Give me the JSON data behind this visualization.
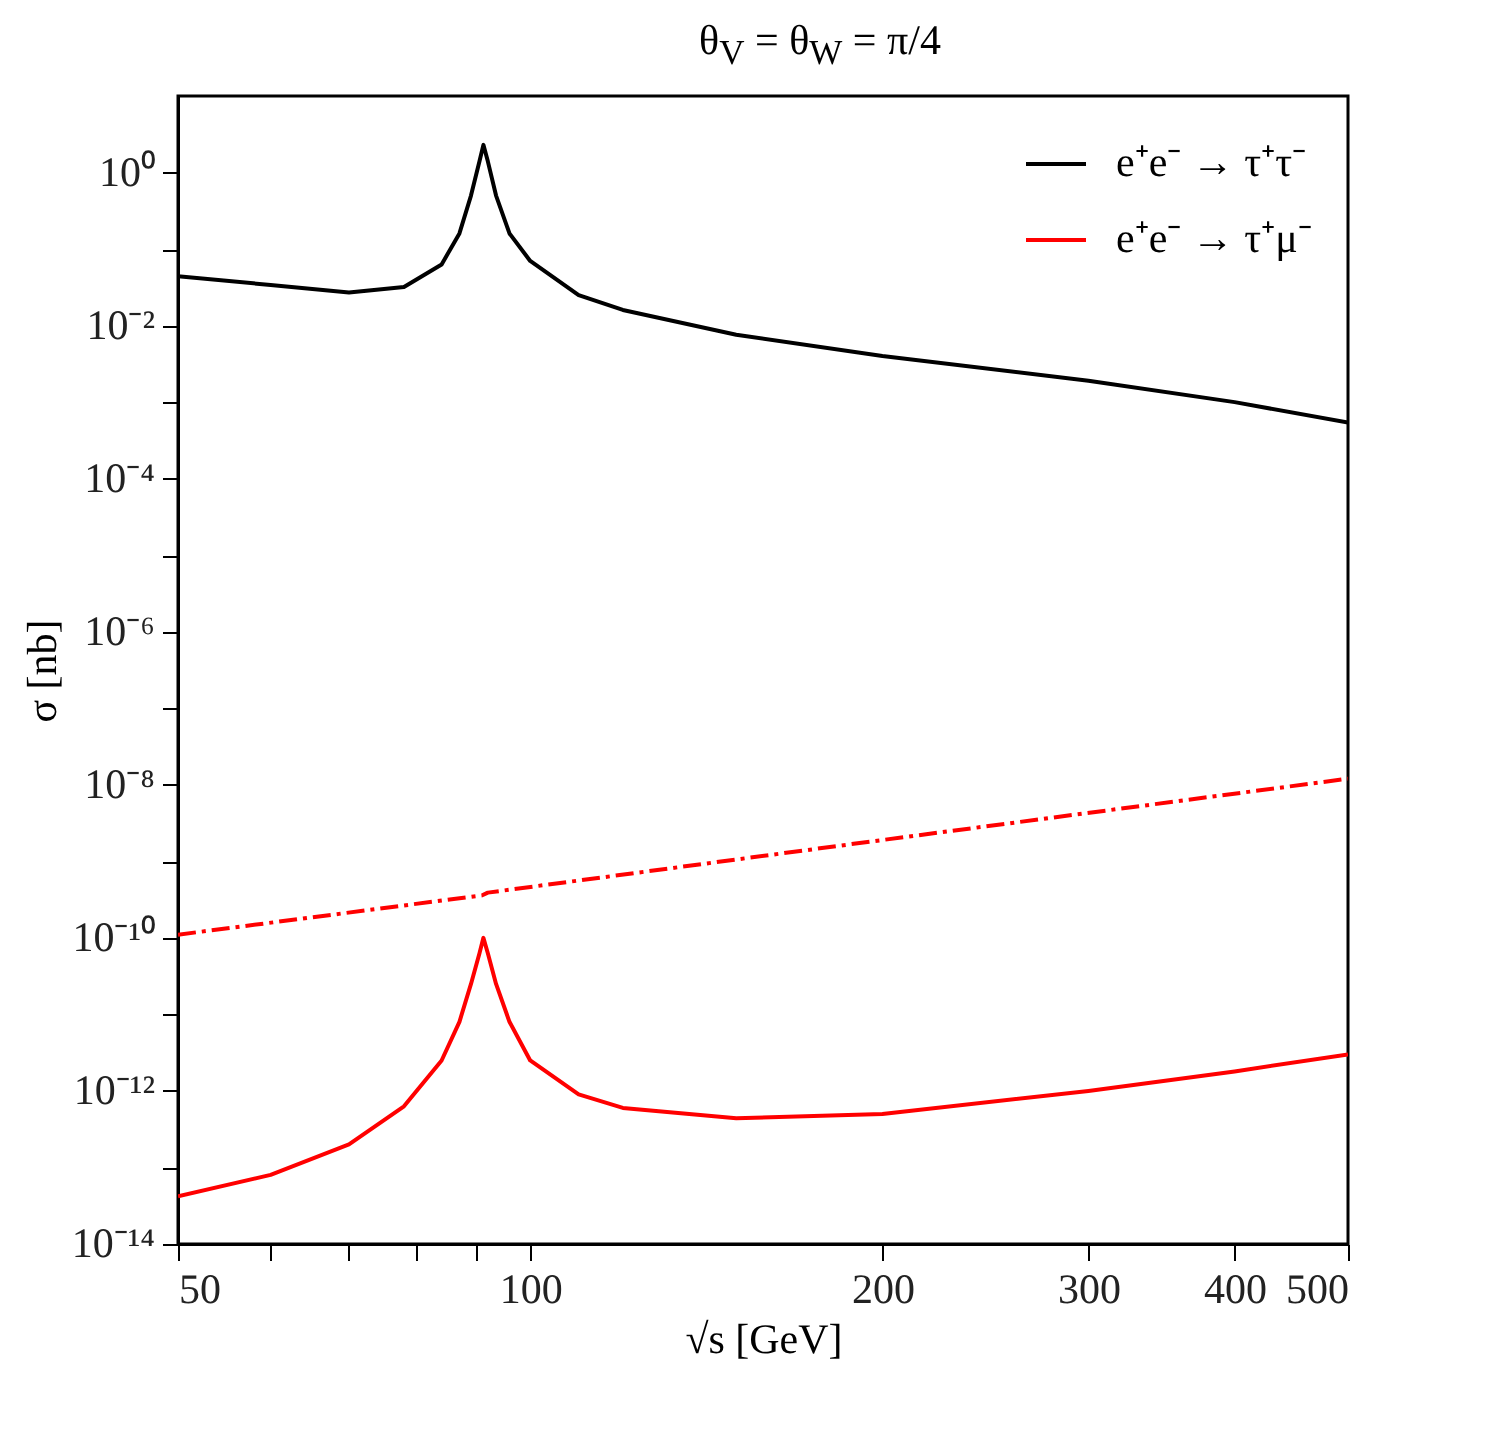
{
  "chart_data": {
    "type": "line",
    "title": "θ$_{V}$ = θ$_{W}$ = π/4",
    "xlabel": "√s [GeV]",
    "ylabel": "σ [nb]",
    "log": "xy",
    "legend": "top right",
    "grid": false,
    "xlim": [
      50,
      500
    ],
    "ylim": [
      1e-14,
      10
    ],
    "xticks": [
      50,
      {
        "value": 60,
        "label": null
      },
      {
        "value": 70,
        "label": null
      },
      {
        "value": 80,
        "label": null
      },
      {
        "value": 90,
        "label": null
      },
      100,
      200,
      300,
      400,
      500
    ],
    "yticks": [
      {
        "value": 1e-14,
        "label": "10⁻¹⁴"
      },
      {
        "value": 1e-13,
        "label": null
      },
      {
        "value": 1e-12,
        "label": "10⁻¹²"
      },
      {
        "value": 1e-11,
        "label": null
      },
      {
        "value": 1e-10,
        "label": "10⁻¹⁰"
      },
      {
        "value": 1e-09,
        "label": null
      },
      {
        "value": 1e-08,
        "label": "10⁻⁸"
      },
      {
        "value": 1e-07,
        "label": null
      },
      {
        "value": 1e-06,
        "label": "10⁻⁶"
      },
      {
        "value": 1e-05,
        "label": null
      },
      {
        "value": 0.0001,
        "label": "10⁻⁴"
      },
      {
        "value": 0.001,
        "label": null
      },
      {
        "value": 0.01,
        "label": "10⁻²"
      },
      {
        "value": 0.1,
        "label": null
      },
      {
        "value": 1,
        "label": "10⁰"
      }
    ],
    "x": [
      50,
      60,
      70,
      78,
      84,
      87,
      89,
      90.5,
      91.2,
      92,
      93.5,
      96,
      100,
      110,
      120,
      150,
      200,
      300,
      400,
      500
    ],
    "series": [
      {
        "name": "e⁺e⁻ → τ⁺τ⁻",
        "color": "#000000",
        "values": [
          0.044,
          0.034,
          0.027,
          0.032,
          0.063,
          0.16,
          0.5,
          1.4,
          2.3,
          1.4,
          0.5,
          0.16,
          0.07,
          0.025,
          0.016,
          0.0076,
          0.004,
          0.0019,
          0.001,
          0.00054
        ]
      },
      {
        "name": "e⁺e⁻ → τ⁺μ⁻",
        "color": "#ff0000",
        "values": [
          4.2e-14,
          8e-14,
          2e-13,
          6.3e-13,
          2.5e-12,
          8e-12,
          2.5e-11,
          6.3e-11,
          1e-10,
          6.3e-11,
          2.5e-11,
          8e-12,
          2.5e-12,
          9e-13,
          6e-13,
          4.4e-13,
          5e-13,
          1e-12,
          1.8e-12,
          3e-12
        ]
      },
      {
        "color": "#ff0000",
        "line_style": "dashdot",
        "x": [
          50,
          91,
          92,
          200,
          500
        ],
        "values": [
          1.1e-10,
          3.6e-10,
          3.9e-10,
          1.9e-09,
          1.2e-08
        ]
      }
    ]
  }
}
